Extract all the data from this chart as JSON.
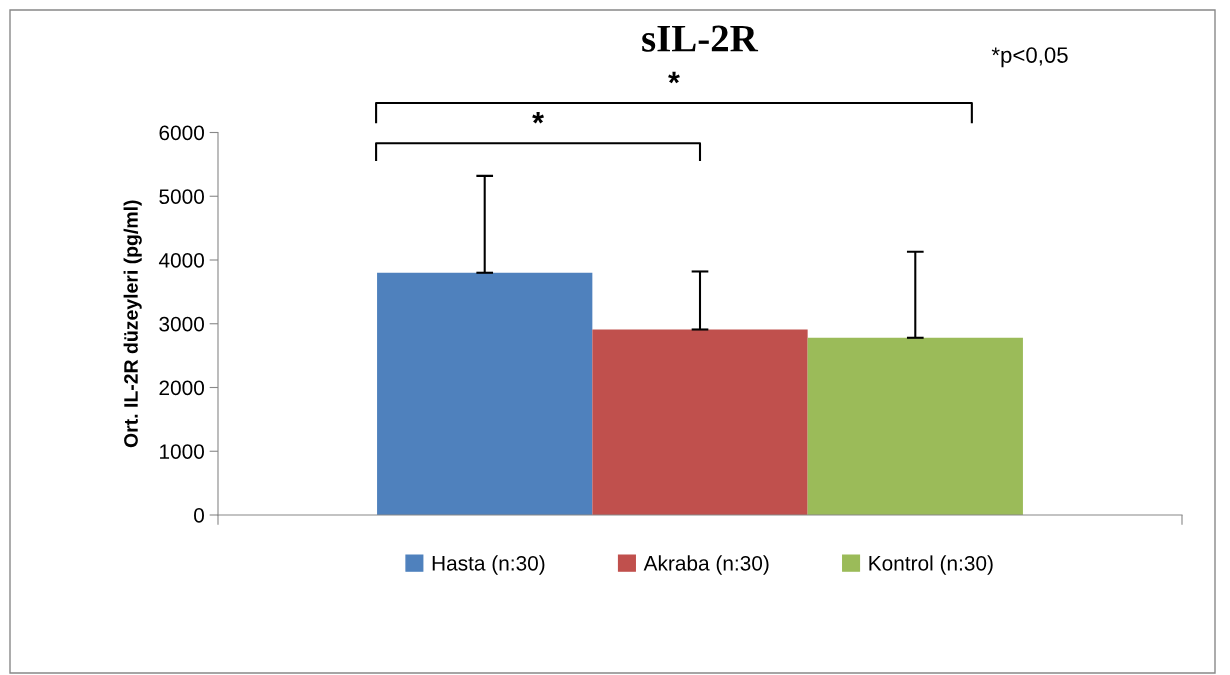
{
  "chart_data": {
    "type": "bar",
    "title": "sIL-2R",
    "ylabel": "Ort. IL-2R düzeyleri (pg/ml)",
    "categories": [
      null
    ],
    "series": [
      {
        "name": "Hasta (n:30)",
        "color": "#4f81bd",
        "values": [
          3800
        ],
        "errors": [
          [
            3800,
            5320
          ]
        ]
      },
      {
        "name": "Akraba (n:30)",
        "color": "#c0504d",
        "values": [
          2910
        ],
        "errors": [
          [
            2910,
            3820
          ]
        ]
      },
      {
        "name": "Kontrol (n:30)",
        "color": "#9bbb59",
        "values": [
          2780
        ],
        "errors": [
          [
            2780,
            4130
          ]
        ]
      }
    ],
    "ylim": [
      0,
      6000
    ],
    "yticks": [
      0,
      1000,
      2000,
      3000,
      4000,
      5000,
      6000
    ],
    "annotations": [
      "*",
      "*",
      "*p<0,05"
    ],
    "grid": false,
    "legend": "bottom"
  }
}
